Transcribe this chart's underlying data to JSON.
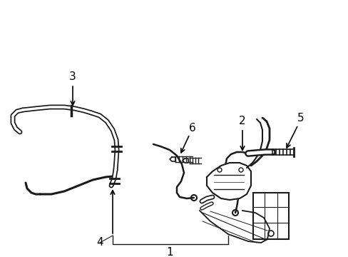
{
  "background_color": "#ffffff",
  "line_color": "#1a1a1a",
  "figsize": [
    4.89,
    3.6
  ],
  "dpi": 100,
  "label_fontsize": 11
}
